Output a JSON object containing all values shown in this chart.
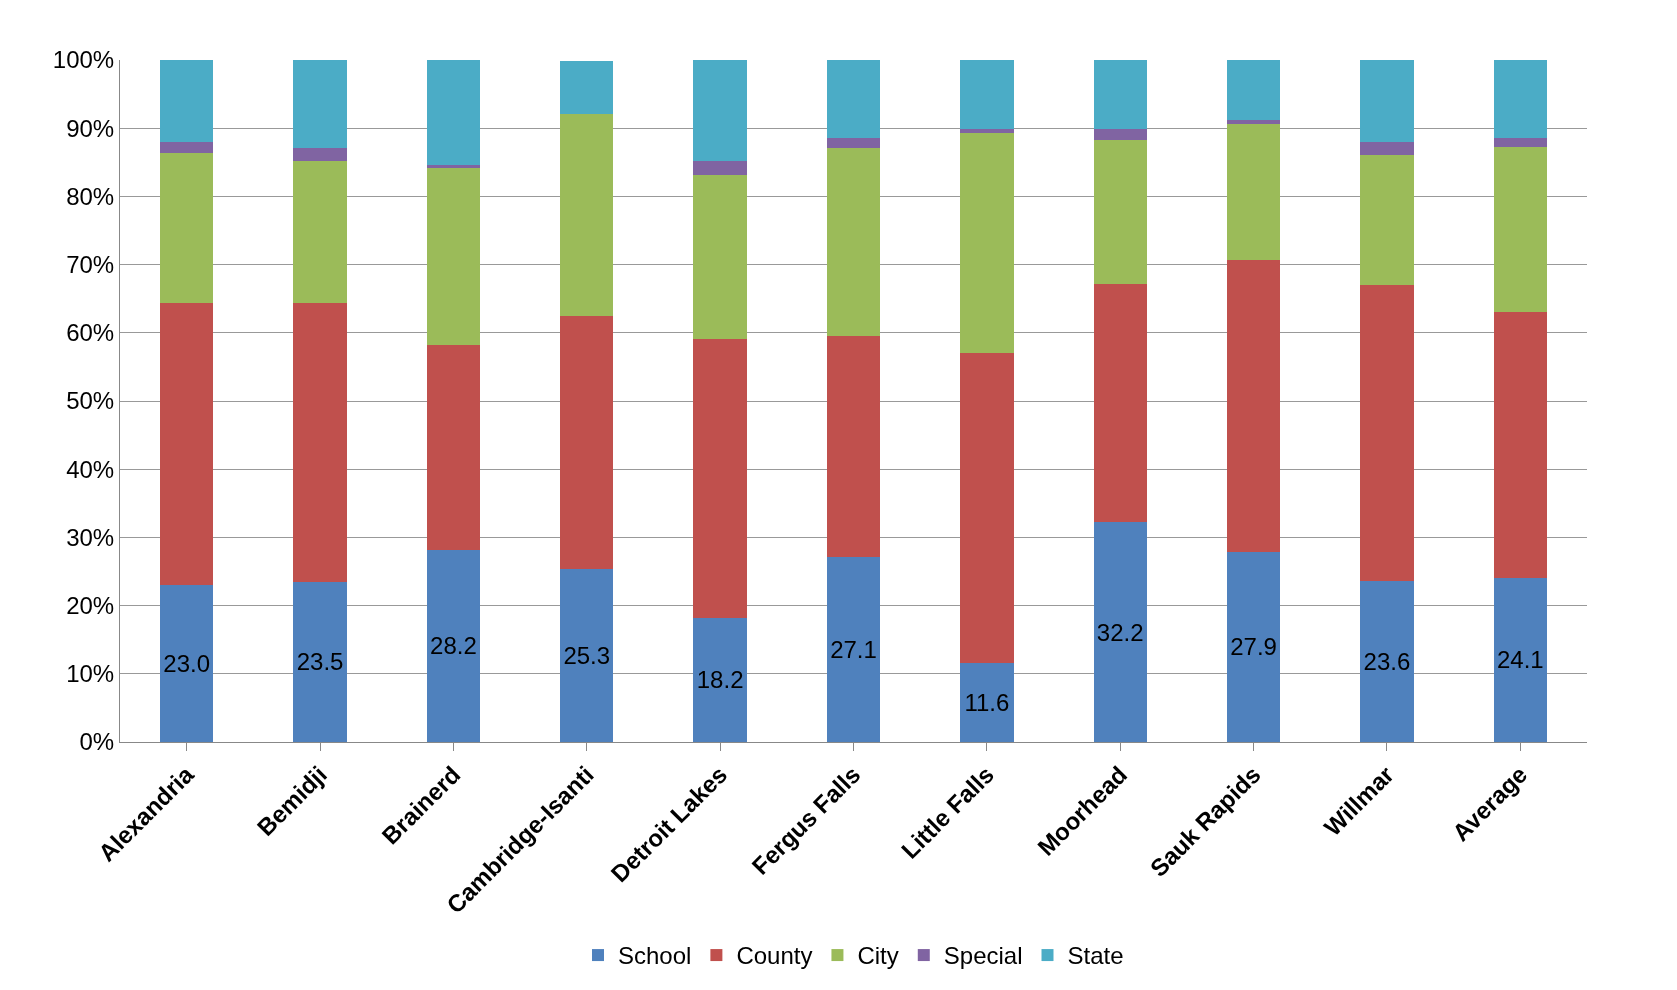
{
  "chart_data": {
    "type": "bar",
    "stacked": true,
    "categories": [
      "Alexandria",
      "Bemidji",
      "Brainerd",
      "Cambridge-Isanti",
      "Detroit Lakes",
      "Fergus Falls",
      "Little Falls",
      "Moorhead",
      "Sauk Rapids",
      "Willmar",
      "Average"
    ],
    "series": [
      {
        "name": "School",
        "color": "#4f81bd",
        "values": [
          23.0,
          23.5,
          28.2,
          25.3,
          18.2,
          27.1,
          11.6,
          32.2,
          27.9,
          23.6,
          24.1
        ],
        "value_labels": [
          "23.0",
          "23.5",
          "28.2",
          "25.3",
          "18.2",
          "27.1",
          "11.6",
          "32.2",
          "27.9",
          "23.6",
          "24.1"
        ]
      },
      {
        "name": "County",
        "color": "#c0504d",
        "values": [
          41.4,
          40.9,
          30.0,
          37.2,
          40.9,
          32.4,
          45.4,
          35.0,
          42.8,
          43.4,
          38.9
        ]
      },
      {
        "name": "City",
        "color": "#9bbb59",
        "values": [
          21.9,
          20.8,
          26.0,
          29.6,
          24.0,
          27.6,
          32.3,
          21.0,
          19.9,
          19.1,
          24.2
        ]
      },
      {
        "name": "Special",
        "color": "#8064a2",
        "values": [
          1.7,
          1.9,
          0.4,
          null,
          2.1,
          1.5,
          0.6,
          1.7,
          0.6,
          1.9,
          1.4
        ]
      },
      {
        "name": "State",
        "color": "#4bacc6",
        "values": [
          12.0,
          12.9,
          15.4,
          7.7,
          14.8,
          11.4,
          10.1,
          10.1,
          8.8,
          12.0,
          11.4
        ]
      }
    ],
    "ylim": [
      0,
      100
    ],
    "yticks": [
      {
        "value": 0,
        "label": "0%"
      },
      {
        "value": 10,
        "label": "10%"
      },
      {
        "value": 20,
        "label": "20%"
      },
      {
        "value": 30,
        "label": "30%"
      },
      {
        "value": 40,
        "label": "40%"
      },
      {
        "value": 50,
        "label": "50%"
      },
      {
        "value": 60,
        "label": "60%"
      },
      {
        "value": 70,
        "label": "70%"
      },
      {
        "value": 80,
        "label": "80%"
      },
      {
        "value": 90,
        "label": "90%"
      },
      {
        "value": 100,
        "label": "100%"
      }
    ],
    "grid": "y",
    "legend": "bottom"
  }
}
